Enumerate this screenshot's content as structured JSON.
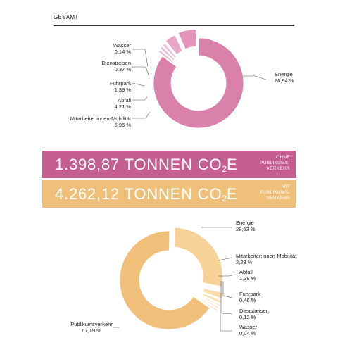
{
  "header": {
    "title": "GESAMT"
  },
  "banners": [
    {
      "value": "1.398,87 TONNEN CO",
      "sub": "2",
      "suffix": "E",
      "note": [
        "OHNE",
        "PUBLIKUMS-",
        "VERKEHR"
      ],
      "color": "#c65d91"
    },
    {
      "value": "4.262,12 TONNEN CO",
      "sub": "2",
      "suffix": "E",
      "note": [
        "MIT",
        "PUBLIKUMS-",
        "VERKEHR"
      ],
      "color": "#f0c07a"
    }
  ],
  "chart_data": [
    {
      "type": "pie",
      "variant": "donut",
      "slices": [
        {
          "label": "Energie",
          "value_text": "86,94 %",
          "value": 86.94,
          "color": "#d980ab"
        },
        {
          "label": "Wasser",
          "value_text": "0,14 %",
          "value": 0.14,
          "color": "#eebbd4"
        },
        {
          "label": "Dienstreisen",
          "value_text": "0,37 %",
          "value": 0.37,
          "color": "#ecb3cf"
        },
        {
          "label": "Fuhrpark",
          "value_text": "1,39 %",
          "value": 1.39,
          "color": "#f1c3da"
        },
        {
          "label": "Abfall",
          "value_text": "4,21 %",
          "value": 4.21,
          "color": "#eaa6c7"
        },
        {
          "label": "Mitarbeiter:innen-Mobilität",
          "value_text": "6,95 %",
          "value": 6.95,
          "color": "#e394bb"
        }
      ]
    },
    {
      "type": "pie",
      "variant": "donut",
      "slices": [
        {
          "label": "Energie",
          "value_text": "28,53 %",
          "value": 28.53,
          "color": "#f6d298"
        },
        {
          "label": "Mitarbeiter:innen-Mobilität",
          "value_text": "2,28 %",
          "value": 2.28,
          "color": "#f8dcab"
        },
        {
          "label": "Abfall",
          "value_text": "1,38 %",
          "value": 1.38,
          "color": "#f9e2b6"
        },
        {
          "label": "Fuhrpark",
          "value_text": "0,46 %",
          "value": 0.46,
          "color": "#fae6c0"
        },
        {
          "label": "Dienstreisen",
          "value_text": "0,12 %",
          "value": 0.12,
          "color": "#fae6c0"
        },
        {
          "label": "Wasser",
          "value_text": "0,04 %",
          "value": 0.04,
          "color": "#fae6c0"
        },
        {
          "label": "Publikumsverkehr",
          "value_text": "67,19 %",
          "value": 67.19,
          "color": "#f0c07a"
        }
      ]
    }
  ]
}
